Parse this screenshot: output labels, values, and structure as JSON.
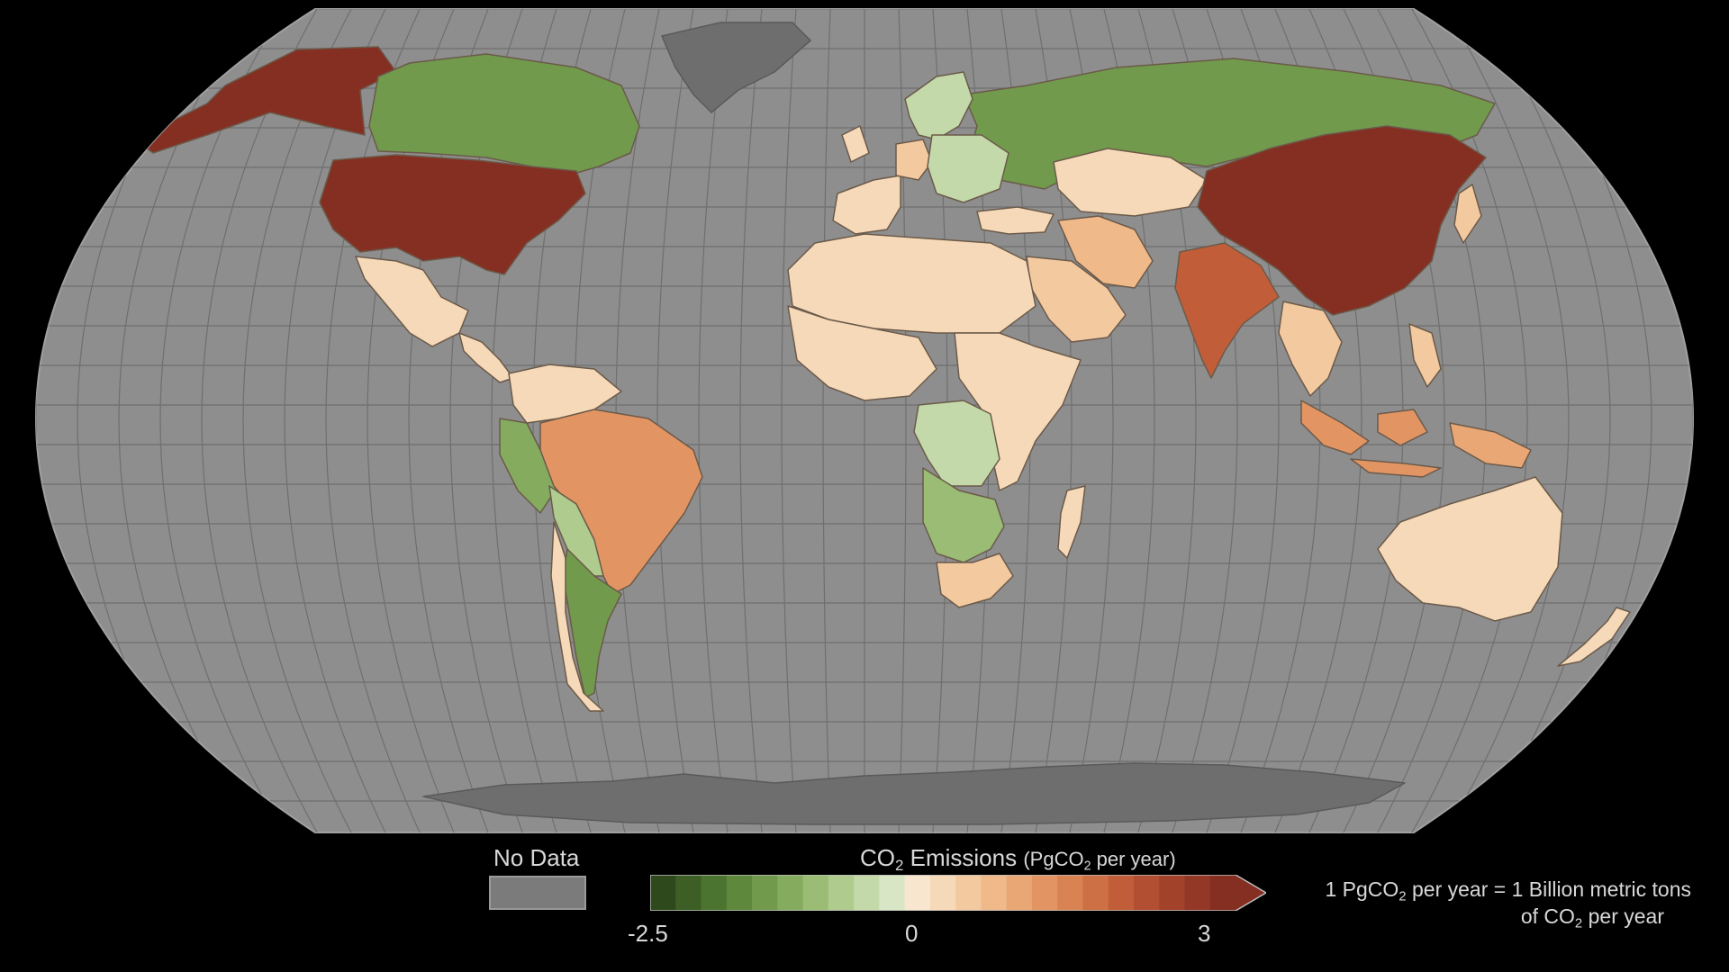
{
  "map": {
    "projection": "robinson",
    "background_color": "#000000",
    "ocean_color": "#8e8e8e",
    "graticule_color": "#6f6f6f",
    "no_data_color": "#6e6e6e"
  },
  "legend": {
    "no_data_label": "No Data",
    "title_prefix": "CO",
    "title_sub": "2",
    "title_suffix": " Emissions ",
    "unit_prefix": "(PgCO",
    "unit_sub": "2",
    "unit_suffix": " per year)",
    "tick_min": "-2.5",
    "tick_zero": "0",
    "tick_max": "3",
    "scale_min": -2.5,
    "scale_max": 3,
    "colors": [
      "#2e4a1c",
      "#3d5f26",
      "#4c7431",
      "#5e883c",
      "#719a4c",
      "#85ab5f",
      "#9abc75",
      "#afcb8e",
      "#c4d9a9",
      "#d9e6c6",
      "#f8e6cf",
      "#f6d9b8",
      "#f3c9a0",
      "#efb98a",
      "#e9a776",
      "#e29563",
      "#d98353",
      "#ce7045",
      "#c15e39",
      "#b24e31",
      "#a2422b",
      "#933826",
      "#852f22"
    ],
    "note_line1_a": "1 PgCO",
    "note_line1_sub": "2",
    "note_line1_b": " per year = 1 Billion metric tons",
    "note_line2_a": "of CO",
    "note_line2_sub": "2",
    "note_line2_b": " per year"
  },
  "regions": [
    {
      "name": "Alaska",
      "value": 3
    },
    {
      "name": "Canada",
      "value": -1.5
    },
    {
      "name": "Greenland",
      "value": null
    },
    {
      "name": "United States",
      "value": 3
    },
    {
      "name": "Mexico",
      "value": 0.3
    },
    {
      "name": "Central America",
      "value": 0.2
    },
    {
      "name": "Colombia-Venezuela",
      "value": 0.2
    },
    {
      "name": "Peru",
      "value": -1.2
    },
    {
      "name": "Brazil",
      "value": 1.2
    },
    {
      "name": "Bolivia-Paraguay",
      "value": -0.8
    },
    {
      "name": "Argentina",
      "value": -1.4
    },
    {
      "name": "Chile",
      "value": 0.3
    },
    {
      "name": "Russia",
      "value": -1.5
    },
    {
      "name": "Scandinavia",
      "value": -0.4
    },
    {
      "name": "Western Europe",
      "value": 0.2
    },
    {
      "name": "Germany",
      "value": 0.6
    },
    {
      "name": "Eastern Europe",
      "value": -0.5
    },
    {
      "name": "Turkey",
      "value": 0.3
    },
    {
      "name": "Kazakhstan",
      "value": 0.3
    },
    {
      "name": "Iran",
      "value": 0.8
    },
    {
      "name": "Saudi Arabia",
      "value": 0.6
    },
    {
      "name": "North Africa",
      "value": 0.2
    },
    {
      "name": "West Africa",
      "value": 0.3
    },
    {
      "name": "East Africa",
      "value": 0.3
    },
    {
      "name": "Central Africa",
      "value": -0.6
    },
    {
      "name": "Southern Africa",
      "value": -0.9
    },
    {
      "name": "South Africa",
      "value": 0.4
    },
    {
      "name": "Madagascar",
      "value": 0.2
    },
    {
      "name": "India",
      "value": 2
    },
    {
      "name": "China",
      "value": 3
    },
    {
      "name": "Japan",
      "value": 0.6
    },
    {
      "name": "Southeast Asia",
      "value": 0.5
    },
    {
      "name": "Indonesia",
      "value": 1.2
    },
    {
      "name": "Papua New Guinea",
      "value": 1
    },
    {
      "name": "Australia",
      "value": 0.2
    },
    {
      "name": "New Zealand",
      "value": 0.2
    },
    {
      "name": "Antarctica",
      "value": null
    }
  ]
}
